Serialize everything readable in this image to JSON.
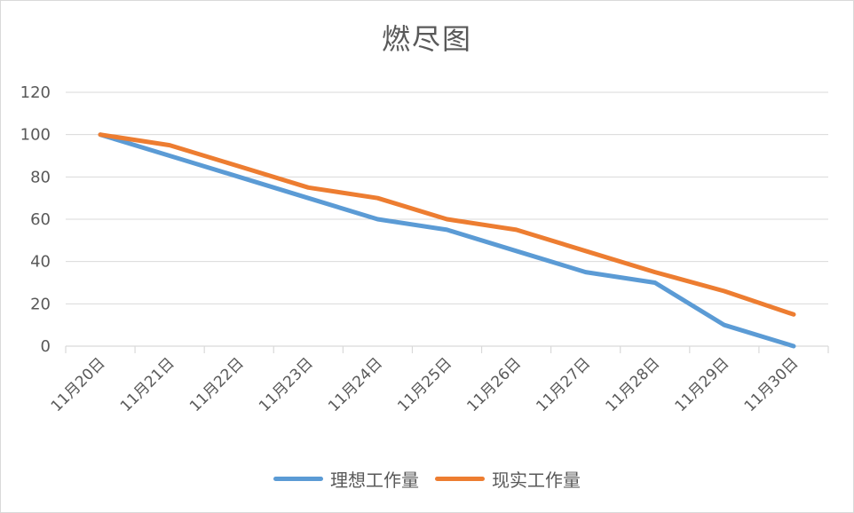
{
  "chart_data": {
    "type": "line",
    "title": "燃尽图",
    "xlabel": "",
    "ylabel": "",
    "categories": [
      "11月20日",
      "11月21日",
      "11月22日",
      "11月23日",
      "11月24日",
      "11月25日",
      "11月26日",
      "11月27日",
      "11月28日",
      "11月29日",
      "11月30日"
    ],
    "ylim": [
      0,
      120
    ],
    "yticks": [
      0,
      20,
      40,
      60,
      80,
      100,
      120
    ],
    "grid": true,
    "legend_position": "bottom",
    "series": [
      {
        "name": "理想工作量",
        "color": "#5b9bd5",
        "values": [
          100,
          90,
          80,
          70,
          60,
          55,
          45,
          35,
          30,
          10,
          0
        ]
      },
      {
        "name": "现实工作量",
        "color": "#ed7d31",
        "values": [
          100,
          95,
          85,
          75,
          70,
          60,
          55,
          45,
          35,
          26,
          15
        ]
      }
    ]
  }
}
